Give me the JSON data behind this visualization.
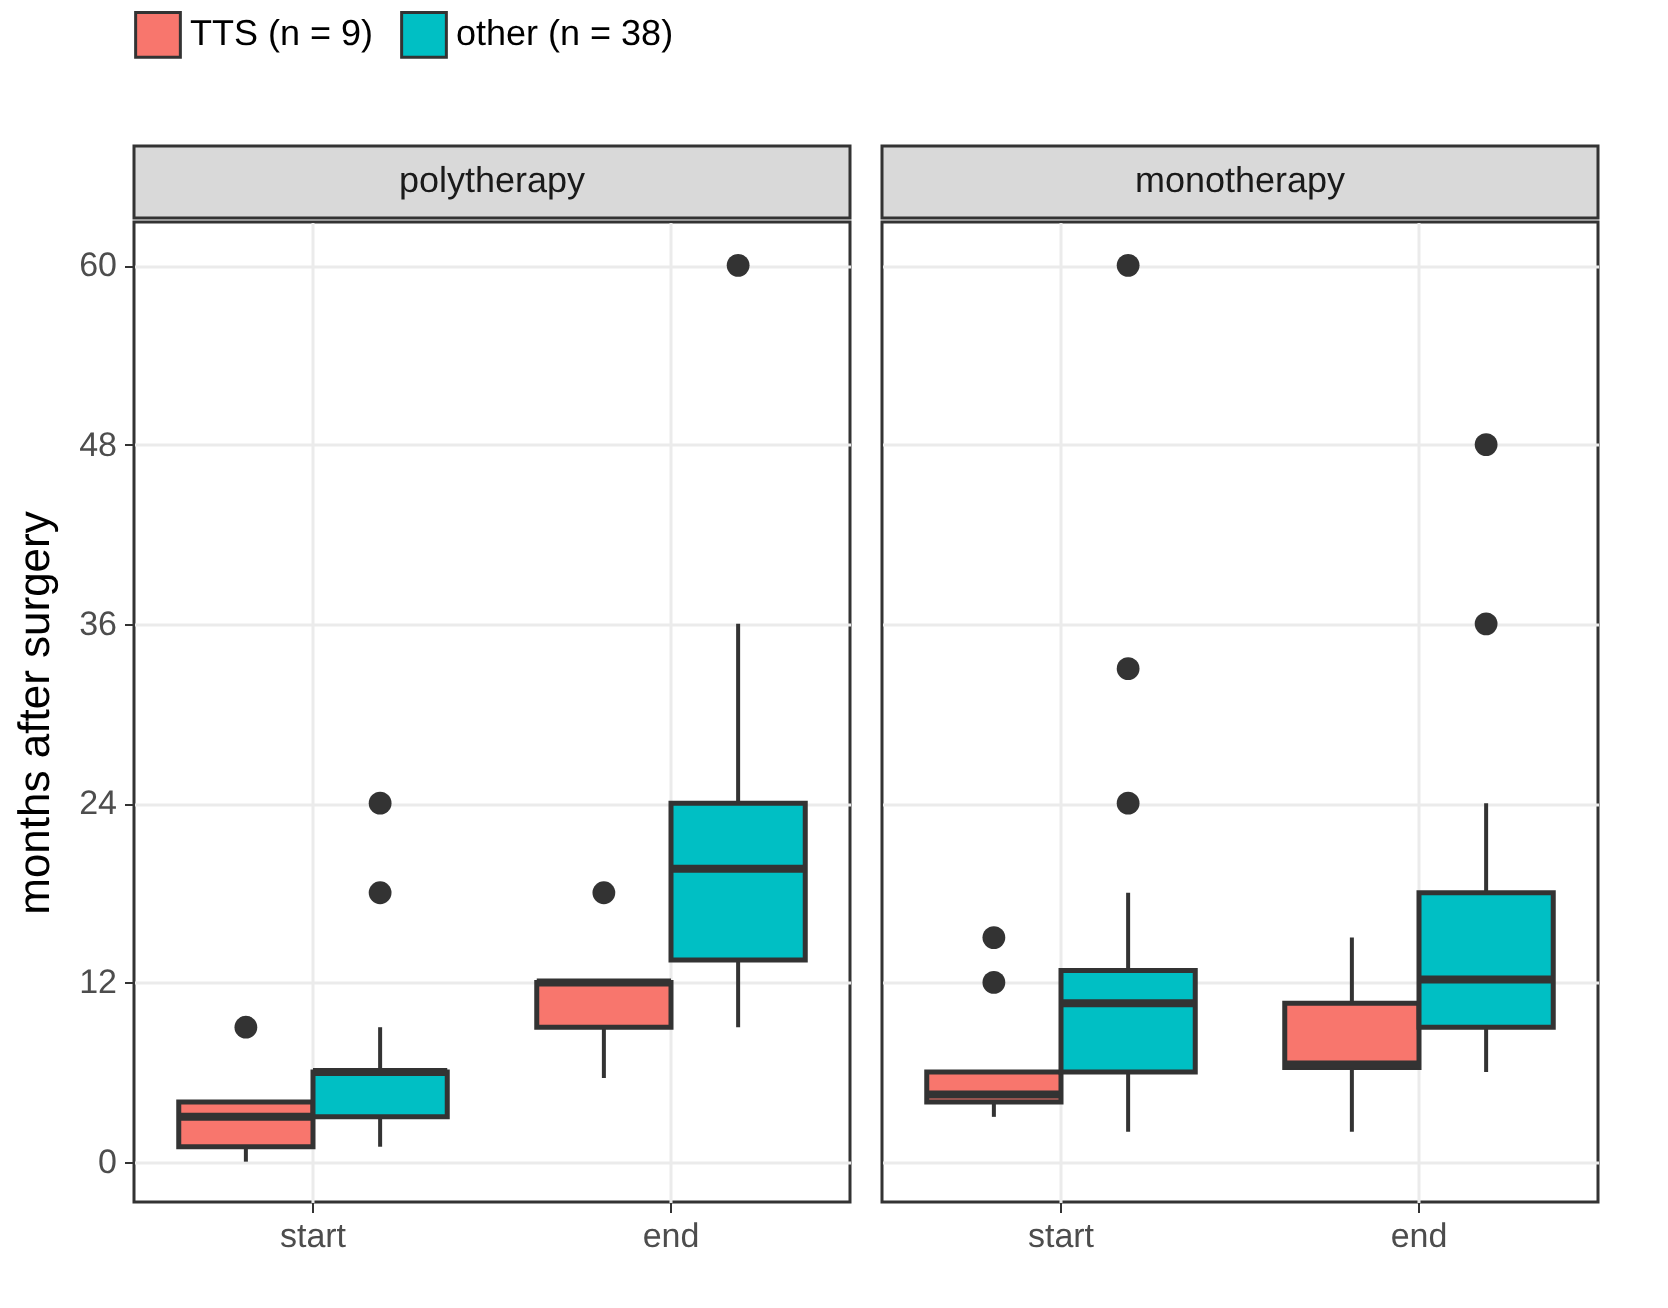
{
  "chart_data": [
    {
      "type": "box",
      "title": "polytherapy",
      "categories": [
        "start",
        "end"
      ],
      "ylabel": "months after surgery",
      "ylim": [
        -2.7,
        62.9
      ],
      "yticks": [
        0,
        12,
        24,
        36,
        48,
        60
      ],
      "grid": true,
      "legend": "top",
      "series": [
        {
          "name": "TTS (n = 9)",
          "color": "#f8766d",
          "boxes": [
            {
              "low": 0,
              "q1": 1,
              "median": 3,
              "q3": 4,
              "high": 4,
              "outliers": [
                9
              ]
            },
            {
              "low": 5.6,
              "q1": 9,
              "median": 12,
              "q3": 12,
              "high": 12,
              "outliers": [
                18
              ]
            }
          ]
        },
        {
          "name": "other (n = 38)",
          "color": "#00bfc4",
          "boxes": [
            {
              "low": 1,
              "q1": 3,
              "median": 6,
              "q3": 6,
              "high": 9,
              "outliers": [
                18,
                24
              ]
            },
            {
              "low": 9,
              "q1": 13.5,
              "median": 19.6,
              "q3": 24,
              "high": 36,
              "outliers": [
                60
              ]
            }
          ]
        }
      ]
    },
    {
      "type": "box",
      "title": "monotherapy",
      "categories": [
        "start",
        "end"
      ],
      "ylim": [
        -2.7,
        62.9
      ],
      "yticks": [
        0,
        12,
        24,
        36,
        48,
        60
      ],
      "grid": true,
      "legend": "top",
      "tick_labels": "x",
      "series": [
        {
          "name": "TTS (n = 9)",
          "color": "#f8766d",
          "boxes": [
            {
              "low": 3,
              "q1": 4,
              "median": 4.5,
              "q3": 6,
              "high": 6,
              "outliers": [
                12,
                15
              ]
            },
            {
              "low": 2,
              "q1": 6.3,
              "median": 6.5,
              "q3": 10.6,
              "high": 15
            }
          ]
        },
        {
          "name": "other (n = 38)",
          "color": "#00bfc4",
          "boxes": [
            {
              "low": 2,
              "q1": 6,
              "median": 10.6,
              "q3": 12.8,
              "high": 18,
              "outliers": [
                24,
                33,
                60
              ]
            },
            {
              "low": 6,
              "q1": 9,
              "median": 12.2,
              "q3": 18,
              "high": 24,
              "outliers": [
                36,
                48
              ]
            }
          ]
        }
      ]
    }
  ]
}
